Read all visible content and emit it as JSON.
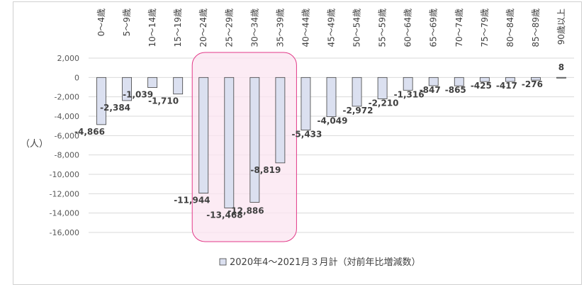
{
  "chart_data": {
    "type": "bar",
    "categories": [
      "0～4歳",
      "5～9歳",
      "10～14歳",
      "15～19歳",
      "20～24歳",
      "25～29歳",
      "30～34歳",
      "35～39歳",
      "40～44歳",
      "45～49歳",
      "50～54歳",
      "55～59歳",
      "60～64歳",
      "65～69歳",
      "70～74歳",
      "75～79歳",
      "80～84歳",
      "85～89歳",
      "90歳以上"
    ],
    "values": [
      -4866,
      -2384,
      -1039,
      -1710,
      -11944,
      -13468,
      -12886,
      -8819,
      -5433,
      -4049,
      -2972,
      -2210,
      -1316,
      -847,
      -865,
      -425,
      -417,
      -276,
      8
    ],
    "data_labels": [
      "-4,866",
      "-2,384",
      "-1,039",
      "-1,710",
      "-11,944",
      "-13,468",
      "-12,886",
      "-8,819",
      "-5,433",
      "-4,049",
      "-2,972",
      "-2,210",
      "-1,316",
      "-847",
      "-865",
      "-425",
      "-417",
      "-276",
      "8"
    ],
    "series": [
      {
        "name": "2020年4～2021月３月計（対前年比増減数）",
        "values": [
          -4866,
          -2384,
          -1039,
          -1710,
          -11944,
          -13468,
          -12886,
          -8819,
          -5433,
          -4049,
          -2972,
          -2210,
          -1316,
          -847,
          -865,
          -425,
          -417,
          -276,
          8
        ]
      }
    ],
    "ylabel": "（人）",
    "ylim": [
      -16000,
      2000
    ],
    "yticks": [
      2000,
      0,
      -2000,
      -4000,
      -6000,
      -8000,
      -10000,
      -12000,
      -14000,
      -16000
    ],
    "ytick_labels": [
      "2,000",
      "0",
      "-2,000",
      "-4,000",
      "-6,000",
      "-8,000",
      "-10,000",
      "-12,000",
      "-14,000",
      "-16,000"
    ],
    "grid": true,
    "legend_position": "bottom",
    "highlight": {
      "from_category": "20～24歳",
      "to_category": "35～39歳",
      "color": "#fbe4f0",
      "border": "#e23a88"
    },
    "colors": {
      "bar_fill": "#dbe0f0",
      "bar_stroke": "#404040",
      "grid": "#d9d9d9"
    }
  }
}
